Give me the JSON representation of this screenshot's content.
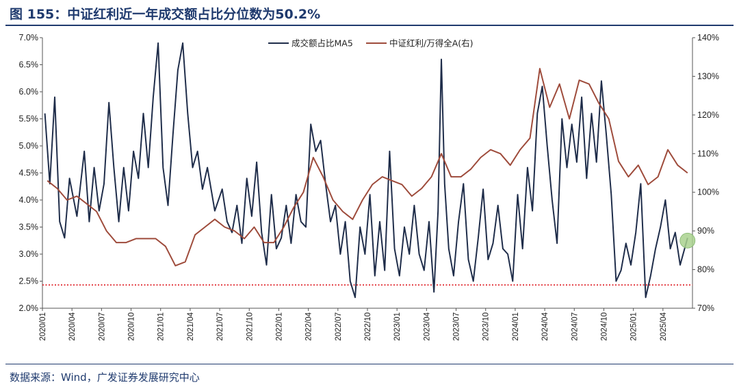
{
  "figure": {
    "title": "图 155：中证红利近一年成交额占比分位数为50.2%",
    "source": "数据来源：Wind，广发证券发展研究中心"
  },
  "chart_data": {
    "type": "line",
    "x_ticks": [
      "2020/01",
      "2020/04",
      "2020/07",
      "2020/10",
      "2021/01",
      "2021/04",
      "2021/07",
      "2021/10",
      "2022/01",
      "2022/04",
      "2022/07",
      "2022/10",
      "2023/01",
      "2023/04",
      "2023/07",
      "2023/10",
      "2024/01",
      "2024/04",
      "2024/07",
      "2024/10",
      "2025/01",
      "2025/04"
    ],
    "x_range": [
      "2020/01",
      "2025/06"
    ],
    "y_left": {
      "min": 2.0,
      "max": 7.0,
      "step": 0.5,
      "ticks": [
        "2.0%",
        "2.5%",
        "3.0%",
        "3.5%",
        "4.0%",
        "4.5%",
        "5.0%",
        "5.5%",
        "6.0%",
        "6.5%",
        "7.0%"
      ]
    },
    "y_right": {
      "min": 70,
      "max": 140,
      "step": 10,
      "ticks": [
        "70%",
        "80%",
        "90%",
        "100%",
        "110%",
        "120%",
        "130%",
        "140%"
      ]
    },
    "reference_line": {
      "axis": "left",
      "value": 2.43,
      "style": "dotted",
      "color": "#e0282e"
    },
    "highlight_point": {
      "series": "成交额占比MA5",
      "date": "2025/06",
      "value": 3.25,
      "color": "#a9d18e"
    },
    "legend_position": "top-center",
    "grid": false,
    "series": [
      {
        "name": "成交额占比MA5",
        "axis": "left",
        "color": "#1f2d4a",
        "points": [
          [
            "2020/01",
            5.6
          ],
          [
            "2020/01",
            4.3
          ],
          [
            "2020/02",
            5.9
          ],
          [
            "2020/02",
            3.6
          ],
          [
            "2020/03",
            3.3
          ],
          [
            "2020/03",
            4.4
          ],
          [
            "2020/04",
            3.7
          ],
          [
            "2020/05",
            4.9
          ],
          [
            "2020/05",
            3.6
          ],
          [
            "2020/06",
            4.6
          ],
          [
            "2020/06",
            3.8
          ],
          [
            "2020/07",
            4.3
          ],
          [
            "2020/07",
            5.8
          ],
          [
            "2020/08",
            4.6
          ],
          [
            "2020/08",
            3.6
          ],
          [
            "2020/09",
            4.6
          ],
          [
            "2020/09",
            3.8
          ],
          [
            "2020/10",
            4.9
          ],
          [
            "2020/10",
            4.4
          ],
          [
            "2020/11",
            5.6
          ],
          [
            "2020/11",
            4.6
          ],
          [
            "2020/12",
            5.9
          ],
          [
            "2020/12",
            6.9
          ],
          [
            "2021/01",
            4.6
          ],
          [
            "2021/01",
            3.9
          ],
          [
            "2021/02",
            5.2
          ],
          [
            "2021/02",
            6.4
          ],
          [
            "2021/03",
            6.9
          ],
          [
            "2021/03",
            5.6
          ],
          [
            "2021/04",
            4.6
          ],
          [
            "2021/04",
            4.9
          ],
          [
            "2021/05",
            4.2
          ],
          [
            "2021/05",
            4.6
          ],
          [
            "2021/06",
            3.8
          ],
          [
            "2021/07",
            4.2
          ],
          [
            "2021/07",
            3.6
          ],
          [
            "2021/08",
            3.4
          ],
          [
            "2021/08",
            3.9
          ],
          [
            "2021/09",
            3.2
          ],
          [
            "2021/09",
            4.4
          ],
          [
            "2021/10",
            3.7
          ],
          [
            "2021/10",
            4.7
          ],
          [
            "2021/11",
            3.4
          ],
          [
            "2021/11",
            2.8
          ],
          [
            "2021/12",
            4.1
          ],
          [
            "2021/12",
            3.1
          ],
          [
            "2022/01",
            3.3
          ],
          [
            "2022/01",
            3.9
          ],
          [
            "2022/02",
            3.2
          ],
          [
            "2022/02",
            4.1
          ],
          [
            "2022/03",
            3.6
          ],
          [
            "2022/03",
            3.5
          ],
          [
            "2022/04",
            5.4
          ],
          [
            "2022/04",
            4.9
          ],
          [
            "2022/05",
            5.1
          ],
          [
            "2022/05",
            4.3
          ],
          [
            "2022/06",
            3.6
          ],
          [
            "2022/06",
            3.9
          ],
          [
            "2022/07",
            3.0
          ],
          [
            "2022/07",
            3.6
          ],
          [
            "2022/08",
            2.5
          ],
          [
            "2022/08",
            2.2
          ],
          [
            "2022/09",
            3.5
          ],
          [
            "2022/09",
            3.0
          ],
          [
            "2022/10",
            4.1
          ],
          [
            "2022/10",
            2.6
          ],
          [
            "2022/11",
            3.6
          ],
          [
            "2022/11",
            2.7
          ],
          [
            "2022/12",
            4.9
          ],
          [
            "2022/12",
            3.1
          ],
          [
            "2023/01",
            2.6
          ],
          [
            "2023/01",
            3.5
          ],
          [
            "2023/02",
            3.0
          ],
          [
            "2023/02",
            3.9
          ],
          [
            "2023/03",
            3.0
          ],
          [
            "2023/03",
            2.7
          ],
          [
            "2023/04",
            3.6
          ],
          [
            "2023/04",
            2.3
          ],
          [
            "2023/05",
            3.8
          ],
          [
            "2023/05",
            6.6
          ],
          [
            "2023/05",
            4.3
          ],
          [
            "2023/06",
            3.1
          ],
          [
            "2023/06",
            2.6
          ],
          [
            "2023/07",
            3.6
          ],
          [
            "2023/07",
            4.3
          ],
          [
            "2023/08",
            2.9
          ],
          [
            "2023/08",
            2.5
          ],
          [
            "2023/09",
            3.3
          ],
          [
            "2023/09",
            4.2
          ],
          [
            "2023/10",
            2.9
          ],
          [
            "2023/10",
            3.2
          ],
          [
            "2023/11",
            3.9
          ],
          [
            "2023/11",
            3.1
          ],
          [
            "2023/12",
            3.0
          ],
          [
            "2023/12",
            2.5
          ],
          [
            "2024/01",
            4.1
          ],
          [
            "2024/01",
            3.1
          ],
          [
            "2024/02",
            4.6
          ],
          [
            "2024/02",
            3.8
          ],
          [
            "2024/03",
            5.6
          ],
          [
            "2024/03",
            6.1
          ],
          [
            "2024/04",
            5.0
          ],
          [
            "2024/04",
            4.0
          ],
          [
            "2024/05",
            3.2
          ],
          [
            "2024/05",
            5.5
          ],
          [
            "2024/06",
            4.6
          ],
          [
            "2024/06",
            5.4
          ],
          [
            "2024/07",
            4.7
          ],
          [
            "2024/07",
            5.9
          ],
          [
            "2024/08",
            4.4
          ],
          [
            "2024/08",
            5.6
          ],
          [
            "2024/09",
            4.7
          ],
          [
            "2024/09",
            6.2
          ],
          [
            "2024/10",
            5.2
          ],
          [
            "2024/10",
            4.1
          ],
          [
            "2024/11",
            2.5
          ],
          [
            "2024/11",
            2.7
          ],
          [
            "2024/12",
            3.2
          ],
          [
            "2024/12",
            2.8
          ],
          [
            "2025/01",
            3.4
          ],
          [
            "2025/01",
            4.3
          ],
          [
            "2025/02",
            2.2
          ],
          [
            "2025/02",
            2.6
          ],
          [
            "2025/03",
            3.1
          ],
          [
            "2025/03",
            3.5
          ],
          [
            "2025/04",
            4.0
          ],
          [
            "2025/04",
            3.1
          ],
          [
            "2025/05",
            3.4
          ],
          [
            "2025/05",
            2.8
          ],
          [
            "2025/06",
            3.3
          ]
        ]
      },
      {
        "name": "中证红利/万得全A(右)",
        "axis": "right",
        "color": "#9e4b3b",
        "points": [
          [
            "2020/01",
            103
          ],
          [
            "2020/02",
            101
          ],
          [
            "2020/03",
            98
          ],
          [
            "2020/04",
            99
          ],
          [
            "2020/05",
            97
          ],
          [
            "2020/06",
            95
          ],
          [
            "2020/07",
            90
          ],
          [
            "2020/08",
            87
          ],
          [
            "2020/09",
            87
          ],
          [
            "2020/10",
            88
          ],
          [
            "2020/11",
            88
          ],
          [
            "2020/12",
            88
          ],
          [
            "2021/01",
            86
          ],
          [
            "2021/02",
            81
          ],
          [
            "2021/03",
            82
          ],
          [
            "2021/04",
            89
          ],
          [
            "2021/05",
            91
          ],
          [
            "2021/06",
            93
          ],
          [
            "2021/07",
            91
          ],
          [
            "2021/08",
            90
          ],
          [
            "2021/09",
            88
          ],
          [
            "2021/10",
            91
          ],
          [
            "2021/11",
            87
          ],
          [
            "2021/12",
            87
          ],
          [
            "2022/01",
            91
          ],
          [
            "2022/02",
            96
          ],
          [
            "2022/03",
            100
          ],
          [
            "2022/04",
            109
          ],
          [
            "2022/05",
            104
          ],
          [
            "2022/06",
            98
          ],
          [
            "2022/07",
            95
          ],
          [
            "2022/08",
            93
          ],
          [
            "2022/09",
            98
          ],
          [
            "2022/10",
            102
          ],
          [
            "2022/11",
            104
          ],
          [
            "2022/12",
            103
          ],
          [
            "2023/01",
            102
          ],
          [
            "2023/02",
            99
          ],
          [
            "2023/03",
            101
          ],
          [
            "2023/04",
            104
          ],
          [
            "2023/05",
            110
          ],
          [
            "2023/06",
            104
          ],
          [
            "2023/07",
            104
          ],
          [
            "2023/08",
            106
          ],
          [
            "2023/09",
            109
          ],
          [
            "2023/10",
            111
          ],
          [
            "2023/11",
            110
          ],
          [
            "2023/12",
            107
          ],
          [
            "2024/01",
            111
          ],
          [
            "2024/02",
            114
          ],
          [
            "2024/03",
            132
          ],
          [
            "2024/04",
            122
          ],
          [
            "2024/05",
            128
          ],
          [
            "2024/06",
            119
          ],
          [
            "2024/07",
            129
          ],
          [
            "2024/08",
            128
          ],
          [
            "2024/09",
            123
          ],
          [
            "2024/10",
            119
          ],
          [
            "2024/11",
            108
          ],
          [
            "2024/12",
            104
          ],
          [
            "2025/01",
            107
          ],
          [
            "2025/02",
            102
          ],
          [
            "2025/03",
            104
          ],
          [
            "2025/04",
            111
          ],
          [
            "2025/05",
            107
          ],
          [
            "2025/06",
            105
          ]
        ]
      }
    ]
  }
}
